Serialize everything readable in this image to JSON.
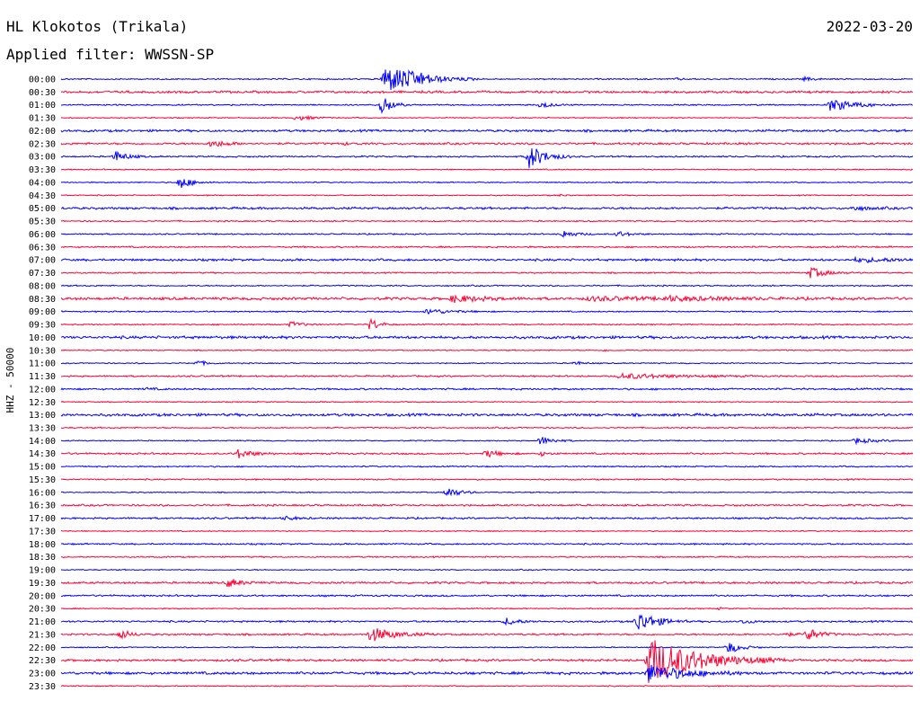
{
  "header": {
    "station": "HL Klokotos (Trikala)",
    "filter": "Applied filter: WWSSN-SP",
    "date": "2022-03-20",
    "channel": "HHZ - 50000"
  },
  "colors": {
    "odd_rows": "#0000ff",
    "even_rows": "#ff0033"
  },
  "chart_data": {
    "type": "line",
    "title": "HL Klokotos (Trikala)",
    "subtitle": "Applied filter: WWSSN-SP",
    "date": "2022-03-20",
    "ylabel": "HHZ - 50000",
    "x_range_minutes": [
      0,
      30
    ],
    "rows": [
      {
        "label": "00:00",
        "noise": 0.6,
        "events": [
          {
            "t": 11.4,
            "amp": 16,
            "dur": 1.1
          },
          {
            "t": 12.0,
            "amp": 3,
            "dur": 0.4
          },
          {
            "t": 12.6,
            "amp": 2,
            "dur": 0.3
          },
          {
            "t": 21.7,
            "amp": 1,
            "dur": 0.2
          },
          {
            "t": 26.2,
            "amp": 2,
            "dur": 0.3
          }
        ]
      },
      {
        "label": "00:30",
        "noise": 1.0,
        "events": []
      },
      {
        "label": "01:00",
        "noise": 0.6,
        "events": [
          {
            "t": 11.3,
            "amp": 12,
            "dur": 0.3
          },
          {
            "t": 16.9,
            "amp": 3,
            "dur": 0.4
          },
          {
            "t": 27.1,
            "amp": 7,
            "dur": 0.8
          }
        ]
      },
      {
        "label": "01:30",
        "noise": 0.5,
        "events": [
          {
            "t": 8.3,
            "amp": 3,
            "dur": 0.5
          }
        ]
      },
      {
        "label": "02:00",
        "noise": 1.0,
        "events": []
      },
      {
        "label": "02:30",
        "noise": 0.9,
        "events": [
          {
            "t": 5.3,
            "amp": 4,
            "dur": 0.5
          },
          {
            "t": 10.0,
            "amp": 1,
            "dur": 0.3
          }
        ]
      },
      {
        "label": "03:00",
        "noise": 0.7,
        "events": [
          {
            "t": 1.9,
            "amp": 6,
            "dur": 0.4
          },
          {
            "t": 16.5,
            "amp": 14,
            "dur": 0.5
          }
        ]
      },
      {
        "label": "03:30",
        "noise": 0.5,
        "events": []
      },
      {
        "label": "04:00",
        "noise": 0.5,
        "events": [
          {
            "t": 4.2,
            "amp": 7,
            "dur": 0.4
          }
        ]
      },
      {
        "label": "04:30",
        "noise": 0.5,
        "events": [
          {
            "t": 17.6,
            "amp": 1,
            "dur": 0.2
          }
        ]
      },
      {
        "label": "05:00",
        "noise": 1.0,
        "events": [
          {
            "t": 27.9,
            "amp": 2,
            "dur": 0.6
          }
        ]
      },
      {
        "label": "05:30",
        "noise": 0.6,
        "events": []
      },
      {
        "label": "06:00",
        "noise": 0.6,
        "events": [
          {
            "t": 17.7,
            "amp": 4,
            "dur": 0.4
          },
          {
            "t": 19.6,
            "amp": 3,
            "dur": 0.4
          }
        ]
      },
      {
        "label": "06:30",
        "noise": 0.7,
        "events": []
      },
      {
        "label": "07:00",
        "noise": 1.0,
        "events": [
          {
            "t": 28.0,
            "amp": 2,
            "dur": 2.0
          }
        ]
      },
      {
        "label": "07:30",
        "noise": 0.6,
        "events": [
          {
            "t": 26.4,
            "amp": 6,
            "dur": 0.5
          }
        ]
      },
      {
        "label": "08:00",
        "noise": 0.6,
        "events": []
      },
      {
        "label": "08:30",
        "noise": 1.2,
        "events": [
          {
            "t": 13.8,
            "amp": 4,
            "dur": 0.9
          },
          {
            "t": 18.6,
            "amp": 2,
            "dur": 2.2
          },
          {
            "t": 21.3,
            "amp": 2,
            "dur": 1.8
          }
        ]
      },
      {
        "label": "09:00",
        "noise": 0.6,
        "events": [
          {
            "t": 12.9,
            "amp": 3,
            "dur": 0.8
          }
        ]
      },
      {
        "label": "09:30",
        "noise": 0.6,
        "events": [
          {
            "t": 8.1,
            "amp": 3,
            "dur": 0.4
          },
          {
            "t": 10.9,
            "amp": 7,
            "dur": 0.3
          }
        ]
      },
      {
        "label": "10:00",
        "noise": 1.2,
        "events": []
      },
      {
        "label": "10:30",
        "noise": 0.5,
        "events": [
          {
            "t": 19.2,
            "amp": 1,
            "dur": 0.2
          }
        ]
      },
      {
        "label": "11:00",
        "noise": 0.5,
        "events": [
          {
            "t": 4.8,
            "amp": 3,
            "dur": 0.3
          },
          {
            "t": 18.1,
            "amp": 2,
            "dur": 0.3
          }
        ]
      },
      {
        "label": "11:30",
        "noise": 0.7,
        "events": [
          {
            "t": 19.7,
            "amp": 3,
            "dur": 1.8
          }
        ]
      },
      {
        "label": "12:00",
        "noise": 0.8,
        "events": [
          {
            "t": 3.0,
            "amp": 1,
            "dur": 0.3
          }
        ]
      },
      {
        "label": "12:30",
        "noise": 0.5,
        "events": []
      },
      {
        "label": "13:00",
        "noise": 1.2,
        "events": []
      },
      {
        "label": "13:30",
        "noise": 0.6,
        "events": []
      },
      {
        "label": "14:00",
        "noise": 0.5,
        "events": [
          {
            "t": 16.9,
            "amp": 5,
            "dur": 0.4
          },
          {
            "t": 28.0,
            "amp": 3,
            "dur": 0.6
          }
        ]
      },
      {
        "label": "14:30",
        "noise": 0.8,
        "events": [
          {
            "t": 6.2,
            "amp": 5,
            "dur": 0.5
          },
          {
            "t": 15.0,
            "amp": 4,
            "dur": 0.4
          },
          {
            "t": 16.9,
            "amp": 2,
            "dur": 0.3
          }
        ]
      },
      {
        "label": "15:00",
        "noise": 0.6,
        "events": []
      },
      {
        "label": "15:30",
        "noise": 0.6,
        "events": []
      },
      {
        "label": "16:00",
        "noise": 0.5,
        "events": [
          {
            "t": 13.6,
            "amp": 6,
            "dur": 0.4
          }
        ]
      },
      {
        "label": "16:30",
        "noise": 0.8,
        "events": []
      },
      {
        "label": "17:00",
        "noise": 0.8,
        "events": [
          {
            "t": 7.9,
            "amp": 2,
            "dur": 0.4
          }
        ]
      },
      {
        "label": "17:30",
        "noise": 0.5,
        "events": []
      },
      {
        "label": "18:00",
        "noise": 0.7,
        "events": []
      },
      {
        "label": "18:30",
        "noise": 0.6,
        "events": []
      },
      {
        "label": "19:00",
        "noise": 0.5,
        "events": []
      },
      {
        "label": "19:30",
        "noise": 0.9,
        "events": [
          {
            "t": 5.9,
            "amp": 5,
            "dur": 0.4
          }
        ]
      },
      {
        "label": "20:00",
        "noise": 0.8,
        "events": []
      },
      {
        "label": "20:30",
        "noise": 0.5,
        "events": [
          {
            "t": 23.2,
            "amp": 1,
            "dur": 0.2
          }
        ]
      },
      {
        "label": "21:00",
        "noise": 0.8,
        "events": [
          {
            "t": 15.7,
            "amp": 4,
            "dur": 0.4
          },
          {
            "t": 20.3,
            "amp": 12,
            "dur": 0.6
          },
          {
            "t": 24.0,
            "amp": 2,
            "dur": 0.4
          }
        ]
      },
      {
        "label": "21:30",
        "noise": 0.8,
        "events": [
          {
            "t": 2.1,
            "amp": 6,
            "dur": 0.3
          },
          {
            "t": 10.9,
            "amp": 8,
            "dur": 0.8
          },
          {
            "t": 25.5,
            "amp": 2,
            "dur": 0.3
          },
          {
            "t": 26.3,
            "amp": 7,
            "dur": 0.4
          }
        ]
      },
      {
        "label": "22:00",
        "noise": 0.5,
        "events": [
          {
            "t": 23.5,
            "amp": 7,
            "dur": 0.4
          }
        ]
      },
      {
        "label": "22:30",
        "noise": 1.0,
        "events": [
          {
            "t": 20.7,
            "amp": 26,
            "dur": 1.6
          }
        ]
      },
      {
        "label": "23:00",
        "noise": 1.2,
        "events": [
          {
            "t": 20.7,
            "amp": 10,
            "dur": 1.2
          }
        ]
      },
      {
        "label": "23:30",
        "noise": 0.5,
        "events": []
      }
    ]
  }
}
